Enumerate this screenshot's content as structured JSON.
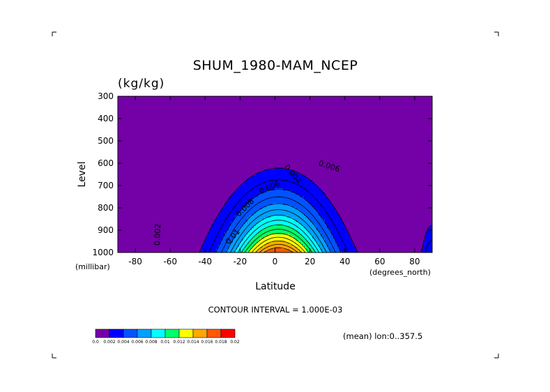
{
  "chart_data": {
    "type": "contour",
    "title": "SHUM_1980-MAM_NCEP",
    "units": "(kg/kg)",
    "xlabel": "Latitude",
    "ylabel": "Level",
    "x_unit_label": "(degrees_north)",
    "y_unit_label": "(millibar)",
    "xlim": [
      -90,
      90
    ],
    "ylim": [
      1000,
      300
    ],
    "x_ticks": [
      -80,
      -60,
      -40,
      -20,
      0,
      20,
      40,
      60,
      80
    ],
    "x_tick_labels": [
      "-80",
      "-60",
      "-40",
      "-20",
      "0",
      "20",
      "40",
      "60",
      "80"
    ],
    "y_ticks": [
      300,
      400,
      500,
      600,
      700,
      800,
      900,
      1000
    ],
    "y_tick_labels": [
      "300",
      "400",
      "500",
      "600",
      "700",
      "800",
      "900",
      "1000"
    ],
    "contour_interval_text": "CONTOUR INTERVAL = 1.000E-03",
    "mean_text": "(mean) lon:0..357.5",
    "contour_labels": [
      {
        "text": "0.002",
        "lat": -67,
        "level": 920,
        "angle": -88
      },
      {
        "text": "0.004",
        "lat": 10,
        "level": 650,
        "angle": 50
      },
      {
        "text": "0.006",
        "lat": -3,
        "level": 710,
        "angle": -25
      },
      {
        "text": "0.006",
        "lat": 31,
        "level": 615,
        "angle": 18
      },
      {
        "text": "0.008",
        "lat": -17,
        "level": 800,
        "angle": -45
      },
      {
        "text": "0.01",
        "lat": -24,
        "level": 930,
        "angle": -48
      }
    ],
    "levels": [
      0.002,
      0.003,
      0.004,
      0.005,
      0.006,
      0.007,
      0.008,
      0.009,
      0.01,
      0.011,
      0.012,
      0.013,
      0.014,
      0.015,
      0.016
    ],
    "colorbar": {
      "colors": [
        "#7400a8",
        "#0000ff",
        "#0053ff",
        "#00a0ff",
        "#00ffff",
        "#00ff6a",
        "#ffff00",
        "#ffa800",
        "#ff5800",
        "#ff0000"
      ],
      "labels": [
        "0.0",
        "0.002",
        "0.004",
        "0.006",
        "0.008",
        "0.01",
        "0.012",
        "0.014",
        "0.016",
        "0.018",
        "0.02"
      ]
    }
  }
}
